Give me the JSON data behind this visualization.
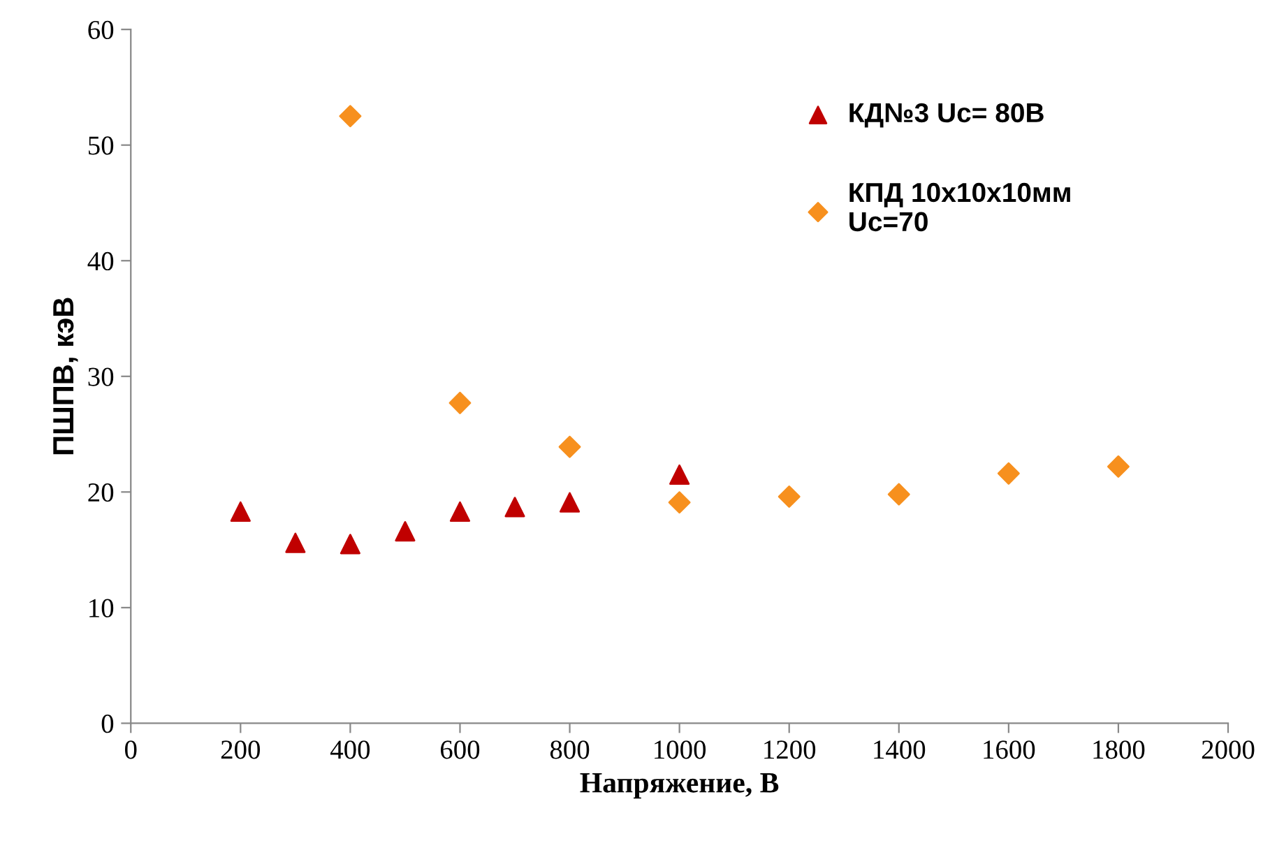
{
  "chart_data": {
    "type": "scatter",
    "xlabel": "Напряжение, В",
    "ylabel": "ПШПВ, кэВ",
    "xlim": [
      0,
      2000
    ],
    "xticks": [
      0,
      200,
      400,
      600,
      800,
      1000,
      1200,
      1400,
      1600,
      1800,
      2000
    ],
    "ylim": [
      0,
      60
    ],
    "yticks": [
      0,
      10,
      20,
      30,
      40,
      50,
      60
    ],
    "grid": false,
    "legend": "top right",
    "series": [
      {
        "name": "КД№3 Uc= 80В",
        "color": "#c00000",
        "marker": "triangle",
        "x": [
          200,
          300,
          400,
          500,
          600,
          700,
          800,
          1000
        ],
        "values": [
          18.3,
          15.6,
          15.5,
          16.6,
          18.3,
          18.7,
          19.1,
          21.5
        ]
      },
      {
        "name": "КПД 10x10x10мм\nUc=70",
        "color": "#f7901e",
        "marker": "diamond",
        "x": [
          400,
          600,
          800,
          1000,
          1200,
          1400,
          1600,
          1800
        ],
        "values": [
          52.5,
          27.7,
          23.9,
          19.1,
          19.6,
          19.8,
          21.6,
          22.2
        ]
      }
    ]
  }
}
